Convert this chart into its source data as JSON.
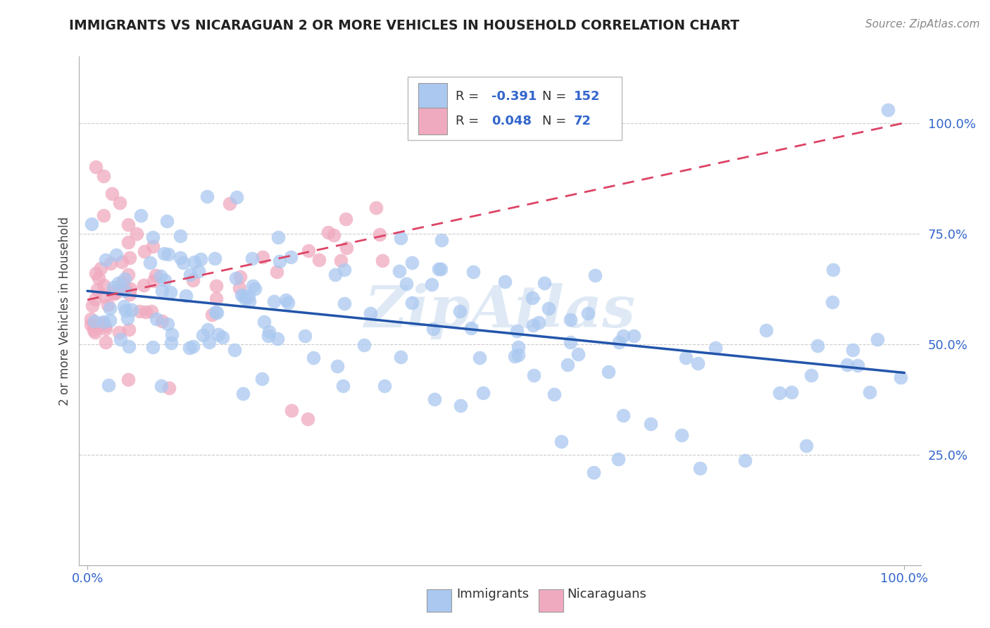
{
  "title": "IMMIGRANTS VS NICARAGUAN 2 OR MORE VEHICLES IN HOUSEHOLD CORRELATION CHART",
  "source": "Source: ZipAtlas.com",
  "ylabel": "2 or more Vehicles in Household",
  "ytick_labels": [
    "25.0%",
    "50.0%",
    "75.0%",
    "100.0%"
  ],
  "ytick_vals": [
    0.25,
    0.5,
    0.75,
    1.0
  ],
  "xtick_labels": [
    "0.0%",
    "100.0%"
  ],
  "xtick_vals": [
    0.0,
    1.0
  ],
  "legend_line1": [
    "R = ",
    "-0.391",
    "  N = ",
    "152"
  ],
  "legend_line2": [
    "R = ",
    "0.048",
    "  N = ",
    "72"
  ],
  "immigrants_color": "#aac8f0",
  "nicaraguans_color": "#f0aac0",
  "immigrants_line_color": "#2255aa",
  "nicaraguans_line_color": "#dd4466",
  "legend_text_color": "#3366cc",
  "background_color": "#ffffff",
  "grid_color": "#cccccc",
  "watermark_text": "ZipAtlas",
  "watermark_color": "#c5d8ee",
  "xlim": [
    0.0,
    1.0
  ],
  "ylim": [
    0.0,
    1.15
  ],
  "bottom_legend_immigrants": "Immigrants",
  "bottom_legend_nicaraguans": "Nicaraguans"
}
